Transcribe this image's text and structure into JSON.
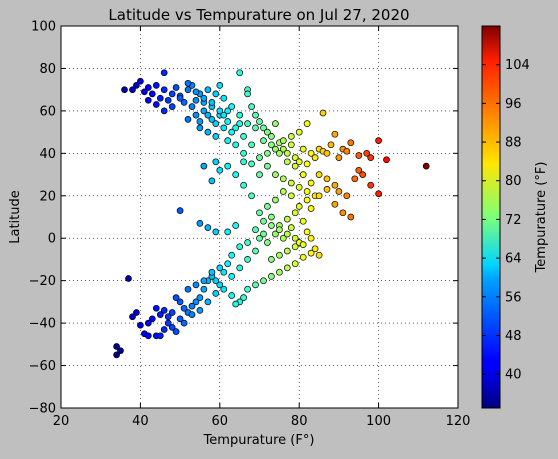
{
  "chart_data": {
    "type": "scatter",
    "title": "Latitude vs Tempurature on Jul 27, 2020",
    "xlabel": "Tempurature (F°)",
    "ylabel": "Latitude",
    "xlim": [
      20,
      120
    ],
    "ylim": [
      -80,
      100
    ],
    "xticks": [
      20,
      40,
      60,
      80,
      100,
      120
    ],
    "yticks": [
      -80,
      -60,
      -40,
      -20,
      0,
      20,
      40,
      60,
      80,
      100
    ],
    "grid": true,
    "colormap": "jet",
    "colorbar": {
      "label": "Tempurature (°F)",
      "range": [
        33,
        112
      ],
      "ticks": [
        40,
        48,
        56,
        64,
        72,
        80,
        88,
        96,
        104
      ]
    },
    "points": [
      [
        36,
        70
      ],
      [
        38,
        70
      ],
      [
        39,
        72
      ],
      [
        40,
        74
      ],
      [
        41,
        69
      ],
      [
        42,
        71
      ],
      [
        43,
        68
      ],
      [
        44,
        72
      ],
      [
        45,
        66
      ],
      [
        46,
        70
      ],
      [
        46,
        78
      ],
      [
        47,
        65
      ],
      [
        48,
        68
      ],
      [
        49,
        71
      ],
      [
        50,
        67
      ],
      [
        51,
        64
      ],
      [
        52,
        70
      ],
      [
        53,
        72
      ],
      [
        54,
        65
      ],
      [
        55,
        68
      ],
      [
        56,
        64
      ],
      [
        57,
        70
      ],
      [
        58,
        62
      ],
      [
        59,
        68
      ],
      [
        60,
        72
      ],
      [
        61,
        66
      ],
      [
        62,
        60
      ],
      [
        60,
        58
      ],
      [
        58,
        56
      ],
      [
        56,
        60
      ],
      [
        54,
        58
      ],
      [
        52,
        56
      ],
      [
        55,
        52
      ],
      [
        57,
        50
      ],
      [
        59,
        48
      ],
      [
        61,
        52
      ],
      [
        62,
        46
      ],
      [
        63,
        50
      ],
      [
        64,
        44
      ],
      [
        65,
        54
      ],
      [
        66,
        48
      ],
      [
        65,
        78
      ],
      [
        67,
        70
      ],
      [
        67,
        68
      ],
      [
        68,
        62
      ],
      [
        69,
        58
      ],
      [
        70,
        55
      ],
      [
        71,
        52
      ],
      [
        72,
        50
      ],
      [
        73,
        48
      ],
      [
        74,
        54
      ],
      [
        75,
        45
      ],
      [
        76,
        42
      ],
      [
        77,
        40
      ],
      [
        78,
        44
      ],
      [
        79,
        38
      ],
      [
        80,
        36
      ],
      [
        81,
        42
      ],
      [
        82,
        35
      ],
      [
        83,
        40
      ],
      [
        84,
        38
      ],
      [
        85,
        42
      ],
      [
        86,
        41
      ],
      [
        86,
        59
      ],
      [
        87,
        40
      ],
      [
        88,
        44
      ],
      [
        89,
        49
      ],
      [
        90,
        38
      ],
      [
        91,
        42
      ],
      [
        92,
        41
      ],
      [
        93,
        45
      ],
      [
        95,
        39
      ],
      [
        97,
        40
      ],
      [
        98,
        38
      ],
      [
        100,
        46
      ],
      [
        102,
        37
      ],
      [
        112,
        34
      ],
      [
        85,
        30
      ],
      [
        87,
        28
      ],
      [
        89,
        25
      ],
      [
        90,
        22
      ],
      [
        92,
        20
      ],
      [
        94,
        28
      ],
      [
        95,
        32
      ],
      [
        96,
        30
      ],
      [
        98,
        25
      ],
      [
        100,
        21
      ],
      [
        84,
        20
      ],
      [
        82,
        18
      ],
      [
        80,
        15
      ],
      [
        78,
        20
      ],
      [
        76,
        22
      ],
      [
        74,
        18
      ],
      [
        72,
        15
      ],
      [
        70,
        12
      ],
      [
        68,
        20
      ],
      [
        66,
        25
      ],
      [
        64,
        30
      ],
      [
        62,
        34
      ],
      [
        60,
        32
      ],
      [
        59,
        36
      ],
      [
        58,
        27
      ],
      [
        56,
        34
      ],
      [
        50,
        13
      ],
      [
        55,
        7
      ],
      [
        57,
        5
      ],
      [
        59,
        3
      ],
      [
        62,
        3
      ],
      [
        64,
        6
      ],
      [
        70,
        0
      ],
      [
        72,
        -2
      ],
      [
        74,
        2
      ],
      [
        76,
        0
      ],
      [
        78,
        5
      ],
      [
        80,
        -2
      ],
      [
        82,
        3
      ],
      [
        84,
        -5
      ],
      [
        85,
        -8
      ],
      [
        83,
        -7
      ],
      [
        81,
        -9
      ],
      [
        79,
        -12
      ],
      [
        77,
        -14
      ],
      [
        75,
        -16
      ],
      [
        73,
        -18
      ],
      [
        71,
        -20
      ],
      [
        69,
        -22
      ],
      [
        67,
        -24
      ],
      [
        66,
        -28
      ],
      [
        65,
        -30
      ],
      [
        64,
        -31
      ],
      [
        63,
        -27
      ],
      [
        61,
        -24
      ],
      [
        60,
        -22
      ],
      [
        59,
        -20
      ],
      [
        58,
        -18
      ],
      [
        57,
        -20
      ],
      [
        56,
        -24
      ],
      [
        55,
        -28
      ],
      [
        54,
        -30
      ],
      [
        53,
        -32
      ],
      [
        52,
        -35
      ],
      [
        51,
        -33
      ],
      [
        50,
        -30
      ],
      [
        49,
        -28
      ],
      [
        48,
        -35
      ],
      [
        47,
        -37
      ],
      [
        46,
        -34
      ],
      [
        45,
        -36
      ],
      [
        44,
        -33
      ],
      [
        43,
        -38
      ],
      [
        42,
        -40
      ],
      [
        41,
        -45
      ],
      [
        40,
        -41
      ],
      [
        39,
        -35
      ],
      [
        38,
        -37
      ],
      [
        37,
        -19
      ],
      [
        35,
        -53
      ],
      [
        34,
        -51
      ],
      [
        34,
        -55
      ],
      [
        42,
        -46
      ],
      [
        44,
        -46
      ],
      [
        46,
        -43
      ],
      [
        48,
        -42
      ],
      [
        50,
        -38
      ],
      [
        52,
        -24
      ],
      [
        54,
        -22
      ],
      [
        56,
        -20
      ],
      [
        58,
        -16
      ],
      [
        60,
        -14
      ],
      [
        62,
        -12
      ],
      [
        63,
        -8
      ],
      [
        65,
        -4
      ],
      [
        67,
        -2
      ],
      [
        69,
        4
      ],
      [
        71,
        8
      ],
      [
        73,
        10
      ],
      [
        75,
        6
      ],
      [
        77,
        9
      ],
      [
        79,
        12
      ],
      [
        81,
        8
      ],
      [
        83,
        14
      ],
      [
        85,
        20
      ],
      [
        87,
        23
      ],
      [
        89,
        16
      ],
      [
        91,
        12
      ],
      [
        93,
        10
      ],
      [
        82,
        54
      ],
      [
        80,
        50
      ],
      [
        78,
        48
      ],
      [
        76,
        46
      ],
      [
        74,
        42
      ],
      [
        72,
        40
      ],
      [
        70,
        38
      ],
      [
        68,
        44
      ],
      [
        66,
        40
      ],
      [
        64,
        52
      ],
      [
        62,
        55
      ],
      [
        60,
        60
      ],
      [
        58,
        64
      ],
      [
        56,
        66
      ],
      [
        54,
        69
      ],
      [
        52,
        73
      ],
      [
        50,
        66
      ],
      [
        48,
        62
      ],
      [
        46,
        60
      ],
      [
        44,
        63
      ],
      [
        42,
        65
      ],
      [
        53,
        62
      ],
      [
        55,
        55
      ],
      [
        57,
        58
      ],
      [
        59,
        54
      ],
      [
        61,
        58
      ],
      [
        63,
        62
      ],
      [
        65,
        58
      ],
      [
        67,
        54
      ],
      [
        69,
        52
      ],
      [
        71,
        46
      ],
      [
        73,
        44
      ],
      [
        75,
        40
      ],
      [
        77,
        36
      ],
      [
        79,
        34
      ],
      [
        81,
        30
      ],
      [
        83,
        26
      ],
      [
        82,
        22
      ],
      [
        80,
        24
      ],
      [
        78,
        26
      ],
      [
        76,
        28
      ],
      [
        74,
        30
      ],
      [
        72,
        34
      ],
      [
        70,
        30
      ],
      [
        68,
        35
      ],
      [
        66,
        36
      ],
      [
        73,
        -10
      ],
      [
        75,
        -8
      ],
      [
        77,
        -6
      ],
      [
        79,
        -4
      ],
      [
        81,
        -3
      ],
      [
        83,
        0
      ],
      [
        79,
        0
      ],
      [
        77,
        2
      ],
      [
        75,
        4
      ],
      [
        73,
        6
      ],
      [
        71,
        2
      ],
      [
        69,
        -6
      ],
      [
        67,
        -10
      ],
      [
        65,
        -14
      ],
      [
        63,
        -18
      ],
      [
        61,
        -16
      ],
      [
        59,
        -26
      ],
      [
        57,
        -30
      ],
      [
        55,
        -34
      ],
      [
        53,
        -36
      ],
      [
        51,
        -40
      ],
      [
        49,
        -44
      ],
      [
        47,
        -40
      ],
      [
        45,
        -46
      ]
    ]
  }
}
